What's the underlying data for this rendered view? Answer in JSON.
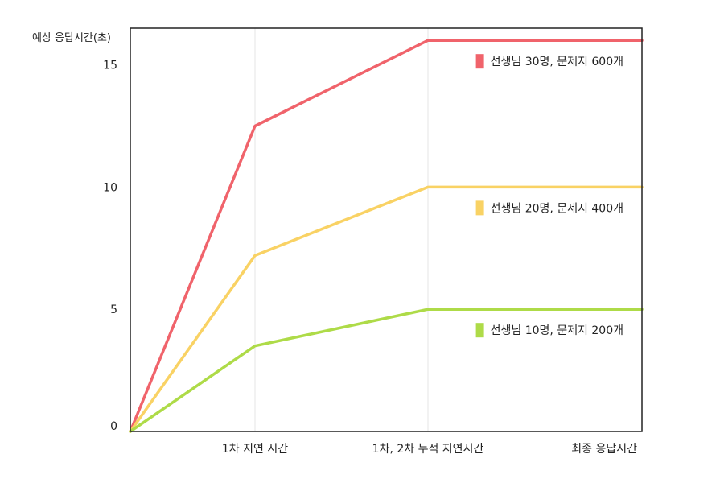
{
  "chart_data": {
    "type": "line",
    "ylabel": "예상 응답시간(초)",
    "categories": [
      "",
      "1차 지연 시간",
      "1차, 2차 누적 지연시간",
      "최종 응답시간"
    ],
    "y_ticks": [
      0,
      5,
      10,
      15
    ],
    "ylim": [
      0,
      16.5
    ],
    "grid": "vertical",
    "legend": "inline-right",
    "series": [
      {
        "name": "선생님 30명, 문제지 600개",
        "color": "#f0636b",
        "values": [
          0,
          12.5,
          16.0,
          16.0
        ]
      },
      {
        "name": "선생님 20명, 문제지 400개",
        "color": "#f9d264",
        "values": [
          0,
          7.2,
          10.0,
          10.0
        ]
      },
      {
        "name": "선생님 10명, 문제지 200개",
        "color": "#aedb48",
        "values": [
          0,
          3.5,
          5.0,
          5.0
        ]
      }
    ]
  }
}
